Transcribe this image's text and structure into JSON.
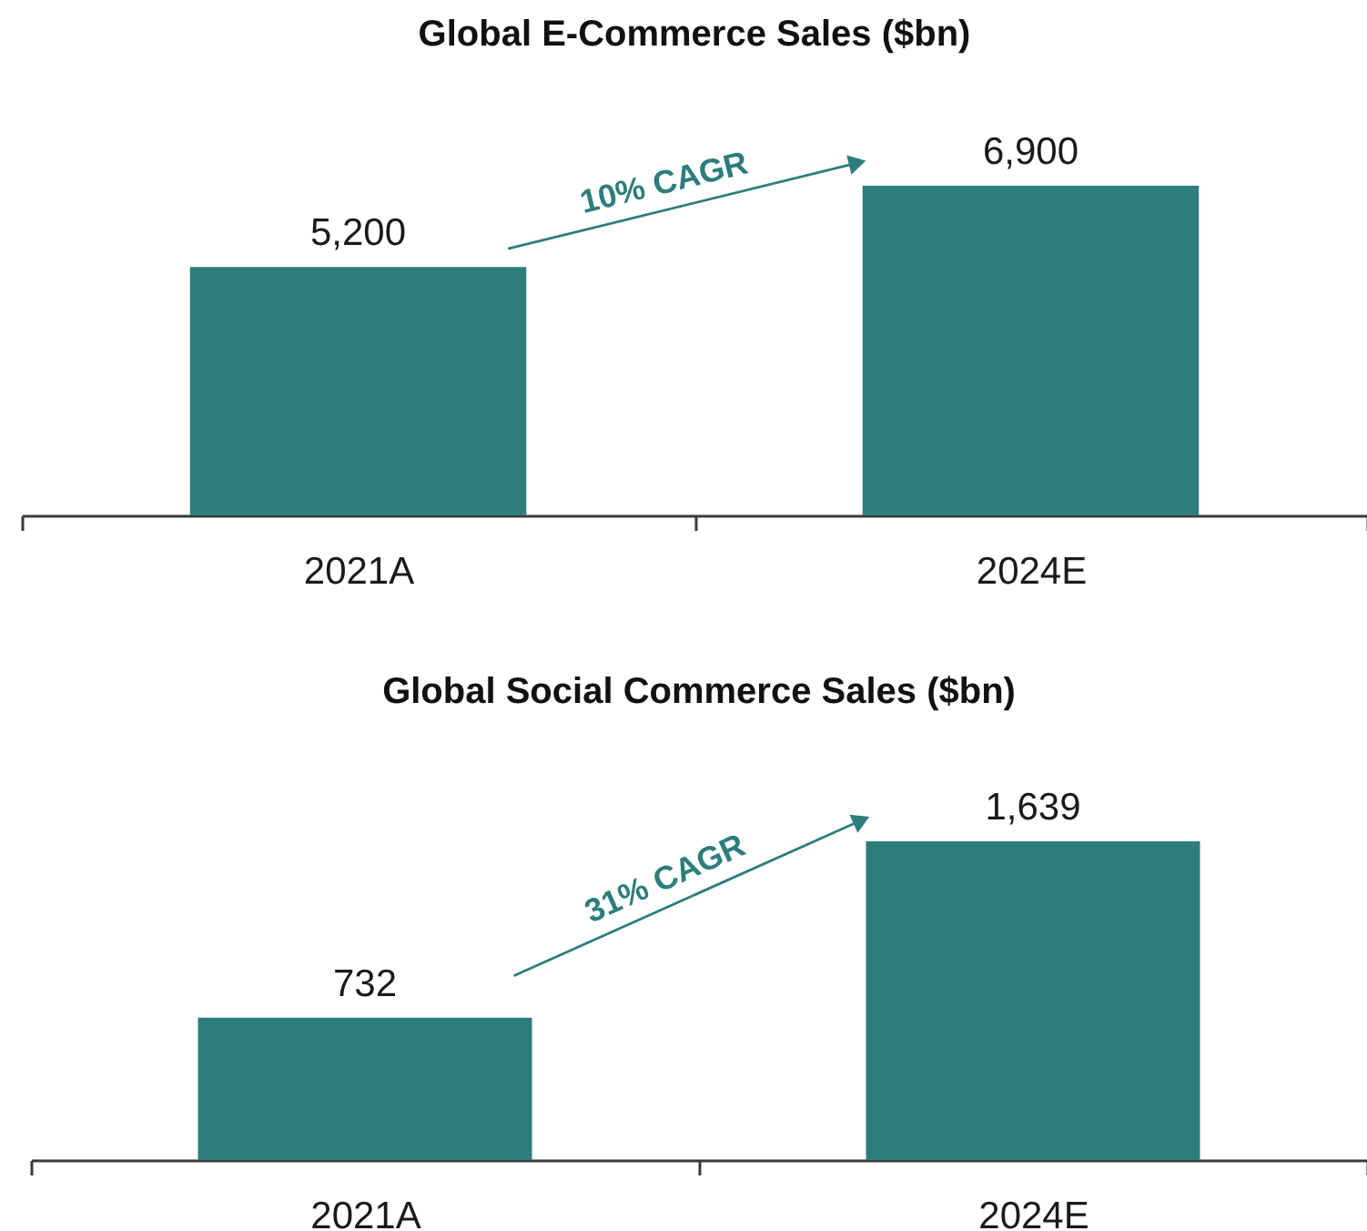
{
  "chart_data": [
    {
      "type": "bar",
      "title": "Global E-Commerce Sales ($bn)",
      "categories": [
        "2021A",
        "2024E"
      ],
      "values": [
        5200,
        6900
      ],
      "value_labels": [
        "5,200",
        "6,900"
      ],
      "color": "#2e7d7d",
      "annotations": [
        "10% CAGR"
      ]
    },
    {
      "type": "bar",
      "title": "Global Social Commerce Sales ($bn)",
      "categories": [
        "2021A",
        "2024E"
      ],
      "values": [
        732,
        1639
      ],
      "value_labels": [
        "732",
        "1,639"
      ],
      "color": "#2e7d7d",
      "annotations": [
        "31% CAGR"
      ]
    }
  ]
}
